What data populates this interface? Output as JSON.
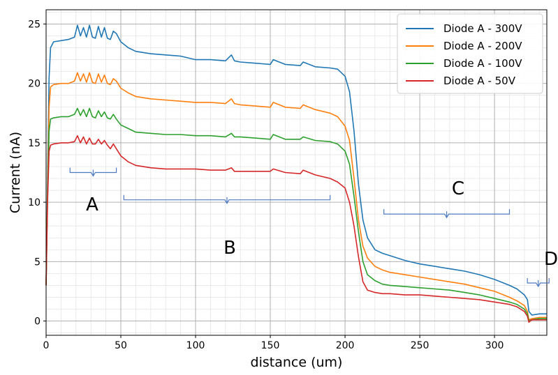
{
  "chart_data": {
    "type": "line",
    "title": "",
    "xlabel": "distance (um)",
    "ylabel": "Current (nA)",
    "xlim": [
      0,
      335
    ],
    "ylim": [
      -1.2,
      26.2
    ],
    "xticks": [
      0,
      50,
      100,
      150,
      200,
      250,
      300
    ],
    "yticks": [
      0,
      5,
      10,
      15,
      20,
      25
    ],
    "grid": true,
    "minor_grid": true,
    "legend_position": "top-right",
    "series": [
      {
        "name": "Diode A - 300V",
        "color": "#1f77b4",
        "x": [
          0,
          1,
          2,
          3,
          5,
          10,
          15,
          19,
          21,
          23,
          25,
          27,
          29,
          31,
          33,
          35,
          37,
          39,
          41,
          43,
          45,
          47,
          50,
          55,
          60,
          70,
          80,
          90,
          100,
          110,
          120,
          124,
          126,
          130,
          140,
          150,
          152,
          160,
          170,
          172,
          180,
          190,
          195,
          200,
          203,
          206,
          209,
          212,
          215,
          220,
          225,
          230,
          240,
          250,
          260,
          270,
          280,
          290,
          300,
          310,
          315,
          320,
          322,
          323,
          325,
          330,
          335
        ],
        "y": [
          3.0,
          12.0,
          20.5,
          23.0,
          23.5,
          23.6,
          23.7,
          23.9,
          24.9,
          24.0,
          24.7,
          23.9,
          24.9,
          23.9,
          23.8,
          24.8,
          23.9,
          24.7,
          23.8,
          23.7,
          24.4,
          24.2,
          23.5,
          23.0,
          22.7,
          22.5,
          22.4,
          22.3,
          22.0,
          22.0,
          21.9,
          22.4,
          21.9,
          21.8,
          21.7,
          21.6,
          22.0,
          21.6,
          21.5,
          21.8,
          21.4,
          21.3,
          21.2,
          20.6,
          19.3,
          16.0,
          11.5,
          8.5,
          7.0,
          6.0,
          5.7,
          5.5,
          5.1,
          4.8,
          4.6,
          4.4,
          4.2,
          3.9,
          3.5,
          3.0,
          2.7,
          2.2,
          1.8,
          0.8,
          0.5,
          0.6,
          0.6
        ]
      },
      {
        "name": "Diode A - 200V",
        "color": "#ff7f0e",
        "x": [
          0,
          1,
          2,
          3,
          5,
          10,
          15,
          19,
          21,
          23,
          25,
          27,
          29,
          31,
          33,
          35,
          37,
          39,
          41,
          43,
          45,
          47,
          50,
          55,
          60,
          70,
          80,
          90,
          100,
          110,
          120,
          124,
          126,
          130,
          140,
          150,
          152,
          160,
          170,
          172,
          180,
          190,
          195,
          200,
          203,
          206,
          209,
          212,
          215,
          220,
          225,
          230,
          240,
          250,
          260,
          270,
          280,
          290,
          300,
          310,
          315,
          320,
          322,
          323,
          325,
          330,
          335
        ],
        "y": [
          3.0,
          11.0,
          18.0,
          19.7,
          19.9,
          20.0,
          20.0,
          20.2,
          20.9,
          20.2,
          20.8,
          20.1,
          20.9,
          20.1,
          20.0,
          20.8,
          20.1,
          20.7,
          20.0,
          19.9,
          20.4,
          20.2,
          19.6,
          19.2,
          18.9,
          18.7,
          18.6,
          18.5,
          18.4,
          18.4,
          18.3,
          18.7,
          18.3,
          18.2,
          18.1,
          18.0,
          18.4,
          18.0,
          17.9,
          18.2,
          17.8,
          17.5,
          17.2,
          16.4,
          15.2,
          12.0,
          8.5,
          6.3,
          5.3,
          4.6,
          4.3,
          4.1,
          3.9,
          3.7,
          3.5,
          3.3,
          3.1,
          2.8,
          2.5,
          2.0,
          1.7,
          1.3,
          0.8,
          0.1,
          0.2,
          0.3,
          0.3
        ]
      },
      {
        "name": "Diode A - 100V",
        "color": "#2ca02c",
        "x": [
          0,
          1,
          2,
          3,
          5,
          10,
          15,
          19,
          21,
          23,
          25,
          27,
          29,
          31,
          33,
          35,
          37,
          39,
          41,
          43,
          45,
          47,
          50,
          55,
          60,
          70,
          80,
          90,
          100,
          110,
          120,
          124,
          126,
          130,
          140,
          150,
          152,
          160,
          170,
          172,
          180,
          190,
          195,
          200,
          203,
          206,
          209,
          212,
          215,
          220,
          225,
          230,
          240,
          250,
          260,
          270,
          280,
          290,
          300,
          310,
          315,
          320,
          322,
          323,
          325,
          330,
          335
        ],
        "y": [
          3.0,
          10.5,
          16.0,
          17.0,
          17.1,
          17.2,
          17.2,
          17.4,
          17.9,
          17.3,
          17.8,
          17.2,
          17.9,
          17.2,
          17.1,
          17.7,
          17.2,
          17.6,
          17.1,
          17.0,
          17.4,
          17.0,
          16.5,
          16.2,
          15.9,
          15.8,
          15.7,
          15.7,
          15.6,
          15.6,
          15.5,
          15.8,
          15.5,
          15.5,
          15.4,
          15.3,
          15.7,
          15.3,
          15.3,
          15.5,
          15.2,
          15.1,
          14.9,
          14.3,
          13.2,
          10.5,
          7.5,
          5.0,
          3.9,
          3.4,
          3.1,
          3.0,
          2.9,
          2.8,
          2.7,
          2.6,
          2.4,
          2.2,
          1.9,
          1.6,
          1.4,
          1.0,
          0.6,
          0.0,
          0.1,
          0.2,
          0.2
        ]
      },
      {
        "name": "Diode A - 50V",
        "color": "#d62728",
        "x": [
          0,
          1,
          2,
          3,
          5,
          10,
          15,
          19,
          21,
          23,
          25,
          27,
          29,
          31,
          33,
          35,
          37,
          39,
          41,
          43,
          45,
          47,
          50,
          55,
          60,
          70,
          80,
          90,
          100,
          110,
          120,
          124,
          126,
          130,
          140,
          150,
          152,
          160,
          170,
          172,
          180,
          190,
          195,
          200,
          203,
          206,
          209,
          212,
          215,
          220,
          225,
          230,
          240,
          250,
          260,
          270,
          280,
          290,
          300,
          310,
          315,
          320,
          322,
          323,
          325,
          330,
          335
        ],
        "y": [
          3.0,
          10.0,
          14.3,
          14.8,
          14.9,
          15.0,
          15.0,
          15.1,
          15.6,
          15.0,
          15.5,
          14.9,
          15.4,
          14.9,
          14.9,
          15.3,
          14.9,
          15.2,
          14.8,
          14.5,
          14.9,
          14.5,
          13.9,
          13.4,
          13.1,
          12.9,
          12.8,
          12.8,
          12.8,
          12.7,
          12.7,
          12.9,
          12.6,
          12.6,
          12.6,
          12.6,
          12.8,
          12.5,
          12.4,
          12.7,
          12.3,
          12.0,
          11.7,
          11.2,
          10.0,
          8.0,
          5.4,
          3.3,
          2.6,
          2.4,
          2.3,
          2.3,
          2.2,
          2.2,
          2.1,
          2.0,
          1.9,
          1.8,
          1.6,
          1.4,
          1.2,
          0.8,
          0.4,
          -0.1,
          0.1,
          0.1,
          0.1
        ]
      }
    ],
    "annotations": [
      {
        "label": "A",
        "x_start": 16,
        "x_end": 47,
        "y": 12.5
      },
      {
        "label": "B",
        "x_start": 52,
        "x_end": 190,
        "y": 10.2
      },
      {
        "label": "C",
        "x_start": 226,
        "x_end": 310,
        "y": 9.0
      },
      {
        "label": "D",
        "x_start": 322,
        "x_end": 337,
        "y": 3.2
      }
    ]
  }
}
